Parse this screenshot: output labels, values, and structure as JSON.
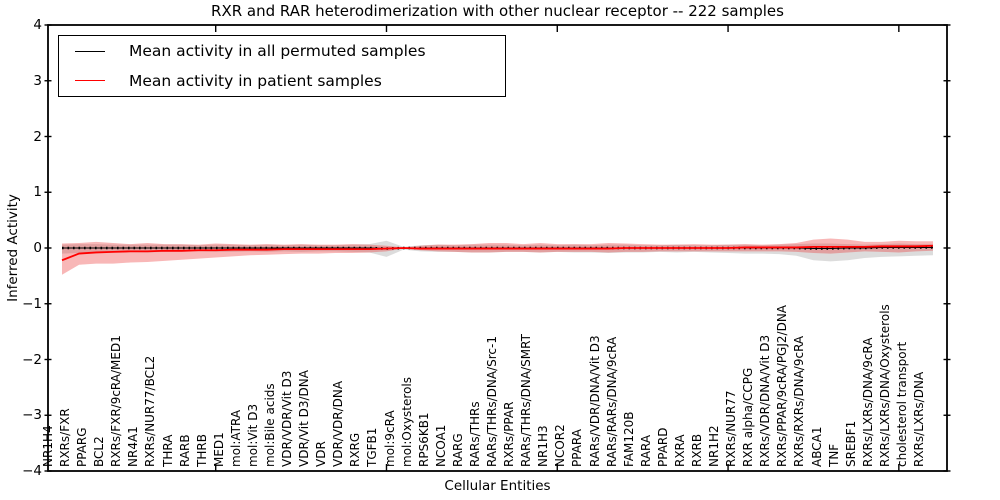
{
  "figure": {
    "title": "RXR and RAR heterodimerization with other nuclear receptor -- 222 samples",
    "xlabel": "Cellular Entities",
    "ylabel": "Inferred Activity"
  },
  "legend": {
    "items": [
      {
        "label": "Mean activity in all permuted samples",
        "color": "#000000"
      },
      {
        "label": "Mean activity in patient samples",
        "color": "#ff0000"
      }
    ]
  },
  "axis": {
    "yticks": [
      "4",
      "3",
      "2",
      "1",
      "0",
      "−1",
      "−2",
      "−3",
      "−4"
    ],
    "major_xtick_indices": [
      9,
      19,
      29,
      39,
      49
    ]
  },
  "chart_data": {
    "type": "line",
    "title": "RXR and RAR heterodimerization with other nuclear receptor -- 222 samples",
    "xlabel": "Cellular Entities",
    "ylabel": "Inferred Activity",
    "ylim": [
      -4,
      4
    ],
    "grid": false,
    "legend_position": "upper left",
    "categories": [
      "NR1H4",
      "RXRs/FXR",
      "PPARG",
      "BCL2",
      "RXRs/FXR/9cRA/MED1",
      "NR4A1",
      "RXRs/NUR77/BCL2",
      "THRA",
      "RARB",
      "THRB",
      "MED1",
      "mol:ATRA",
      "mol:Vit D3",
      "mol:Bile acids",
      "VDR/VDR/Vit D3",
      "VDR/Vit D3/DNA",
      "VDR",
      "VDR/VDR/DNA",
      "RXRG",
      "TGFB1",
      "mol:9cRA",
      "mol:Oxysterols",
      "RPS6KB1",
      "NCOA1",
      "RARG",
      "RARs/THRs",
      "RARs/THRs/DNA/Src-1",
      "RXRs/PPAR",
      "RARs/THRs/DNA/SMRT",
      "NR1H3",
      "NCOR2",
      "PPARA",
      "RARs/VDR/DNA/Vit D3",
      "RARs/RARs/DNA/9cRA",
      "FAM120B",
      "RARA",
      "PPARD",
      "RXRA",
      "RXRB",
      "NR1H2",
      "RXRs/NUR77",
      "RXR alpha/CCPG",
      "RXRs/VDR/DNA/Vit D3",
      "RXRs/PPAR/9cRA/PGJ2/DNA",
      "RXRs/RXRs/DNA/9cRA",
      "ABCA1",
      "TNF",
      "SREBF1",
      "RXRs/LXRs/DNA/9cRA",
      "RXRs/LXRs/DNA/Oxysterols",
      "cholesterol transport",
      "RXRs/LXRs/DNA"
    ],
    "series": [
      {
        "name": "Mean activity in all permuted samples",
        "color": "#000000",
        "band_color": "rgba(130,130,130,0.28)",
        "values": [
          0,
          0,
          0,
          0,
          0,
          0,
          0,
          0,
          0,
          0,
          0,
          0,
          0,
          0,
          0,
          0,
          0,
          0,
          0,
          -0.01,
          0,
          0,
          0,
          0,
          0,
          0,
          0,
          0,
          0,
          0,
          0,
          0,
          0,
          0,
          0,
          0,
          0,
          0,
          0,
          0,
          0,
          0,
          0,
          0,
          -0.01,
          -0.01,
          0,
          0,
          0.01,
          0.01,
          0.01,
          0.01
        ],
        "band_upper": [
          0.06,
          0.07,
          0.07,
          0.06,
          0.06,
          0.06,
          0.06,
          0.06,
          0.05,
          0.06,
          0.06,
          0.05,
          0.06,
          0.05,
          0.06,
          0.05,
          0.05,
          0.06,
          0.07,
          0.13,
          0.02,
          0.05,
          0.06,
          0.05,
          0.06,
          0.06,
          0.06,
          0.05,
          0.06,
          0.05,
          0.06,
          0.05,
          0.06,
          0.06,
          0.05,
          0.05,
          0.06,
          0.05,
          0.05,
          0.06,
          0.06,
          0.05,
          0.06,
          0.07,
          0.08,
          0.08,
          0.07,
          0.06,
          0.07,
          0.08,
          0.07,
          0.07
        ],
        "band_lower": [
          -0.1,
          -0.09,
          -0.08,
          -0.08,
          -0.07,
          -0.08,
          -0.07,
          -0.07,
          -0.06,
          -0.07,
          -0.07,
          -0.06,
          -0.07,
          -0.06,
          -0.07,
          -0.06,
          -0.06,
          -0.07,
          -0.08,
          -0.16,
          -0.03,
          -0.06,
          -0.07,
          -0.07,
          -0.08,
          -0.08,
          -0.07,
          -0.07,
          -0.08,
          -0.07,
          -0.08,
          -0.08,
          -0.09,
          -0.08,
          -0.08,
          -0.07,
          -0.08,
          -0.07,
          -0.08,
          -0.09,
          -0.1,
          -0.1,
          -0.11,
          -0.14,
          -0.22,
          -0.24,
          -0.22,
          -0.18,
          -0.16,
          -0.15,
          -0.14,
          -0.13
        ]
      },
      {
        "name": "Mean activity in patient samples",
        "color": "#ff0000",
        "band_color": "rgba(235,50,50,0.35)",
        "values": [
          -0.22,
          -0.1,
          -0.08,
          -0.07,
          -0.06,
          -0.06,
          -0.05,
          -0.05,
          -0.04,
          -0.04,
          -0.03,
          -0.03,
          -0.03,
          -0.02,
          -0.02,
          -0.02,
          -0.02,
          -0.02,
          -0.02,
          -0.01,
          0,
          -0.01,
          -0.01,
          -0.01,
          -0.01,
          -0.01,
          -0.01,
          -0.01,
          -0.01,
          -0.01,
          -0.01,
          -0.01,
          -0.01,
          0,
          0,
          0,
          0,
          0,
          0,
          0,
          0.01,
          0.01,
          0.01,
          0.01,
          0.02,
          0.02,
          0.02,
          0.02,
          0.03,
          0.03,
          0.03,
          0.04
        ],
        "band_upper": [
          0.08,
          0.09,
          0.11,
          0.09,
          0.07,
          0.09,
          0.07,
          0.07,
          0.06,
          0.08,
          0.07,
          0.06,
          0.07,
          0.06,
          0.07,
          0.06,
          0.06,
          0.07,
          0.06,
          0.04,
          0.01,
          0.04,
          0.06,
          0.06,
          0.07,
          0.09,
          0.09,
          0.07,
          0.09,
          0.07,
          0.07,
          0.07,
          0.09,
          0.08,
          0.07,
          0.06,
          0.06,
          0.07,
          0.06,
          0.06,
          0.07,
          0.06,
          0.07,
          0.09,
          0.15,
          0.17,
          0.15,
          0.11,
          0.11,
          0.13,
          0.12,
          0.12
        ],
        "band_lower": [
          -0.48,
          -0.3,
          -0.28,
          -0.28,
          -0.26,
          -0.25,
          -0.23,
          -0.21,
          -0.19,
          -0.17,
          -0.15,
          -0.13,
          -0.12,
          -0.11,
          -0.1,
          -0.1,
          -0.09,
          -0.09,
          -0.08,
          -0.06,
          -0.01,
          -0.04,
          -0.06,
          -0.07,
          -0.08,
          -0.08,
          -0.07,
          -0.07,
          -0.08,
          -0.07,
          -0.07,
          -0.07,
          -0.08,
          -0.07,
          -0.07,
          -0.06,
          -0.06,
          -0.06,
          -0.06,
          -0.06,
          -0.06,
          -0.06,
          -0.06,
          -0.07,
          -0.09,
          -0.1,
          -0.08,
          -0.06,
          -0.07,
          -0.08,
          -0.06,
          -0.05
        ]
      }
    ]
  }
}
